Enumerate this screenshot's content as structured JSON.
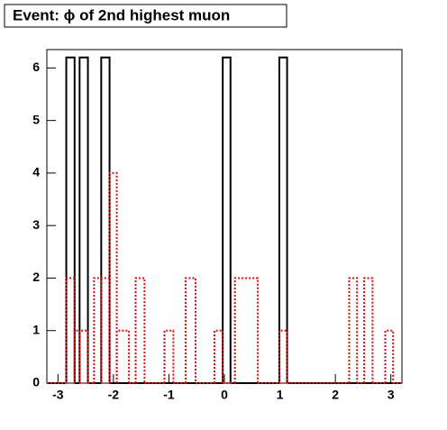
{
  "chart_data": {
    "type": "histogram",
    "title": "Event: ϕ of 2nd highest muon",
    "bins": [
      -3.2,
      -2.85,
      -2.7,
      -2.61,
      -2.46,
      -2.35,
      -2.22,
      -2.07,
      -1.94,
      -1.72,
      -1.6,
      -1.44,
      -1.08,
      -0.92,
      -0.7,
      -0.52,
      -0.18,
      -0.03,
      0.11,
      0.19,
      0.6,
      0.99,
      1.13,
      2.25,
      2.39,
      2.52,
      2.67,
      2.9,
      3.04,
      3.2
    ],
    "series": [
      {
        "color": "#000000",
        "values": [
          0,
          6.2,
          0,
          6.2,
          0,
          0,
          6.2,
          0,
          0,
          0,
          0,
          0,
          0,
          0,
          0,
          0,
          0,
          6.2,
          0,
          0,
          0,
          6.2,
          0,
          0,
          0,
          0,
          0,
          0,
          0
        ]
      },
      {
        "color": "#ff0000",
        "values": [
          0,
          2,
          1,
          1,
          0,
          2,
          2,
          4,
          1,
          0,
          2,
          0,
          1,
          0,
          2,
          0,
          1,
          0,
          0,
          2,
          0,
          1,
          0,
          2,
          0,
          2,
          0,
          1,
          0
        ]
      }
    ],
    "xlim": [
      -3.2,
      3.2
    ],
    "xticks": [
      -3,
      -2,
      -1,
      0,
      1,
      2,
      3
    ],
    "ylim": [
      0,
      6.35
    ],
    "yticks": [
      0,
      1,
      2,
      3,
      4,
      5,
      6
    ]
  }
}
